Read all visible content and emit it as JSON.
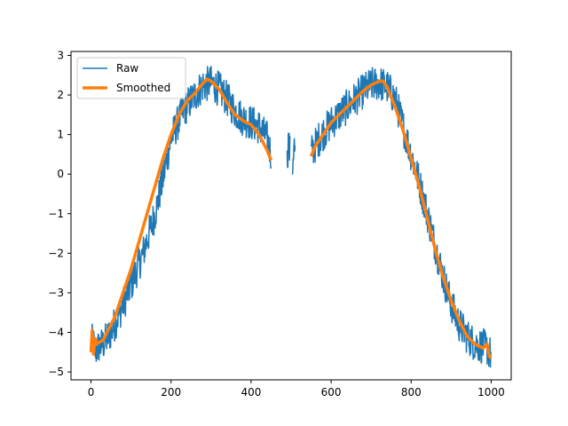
{
  "chart_data": {
    "type": "line",
    "title": "",
    "xlabel": "",
    "ylabel": "",
    "xlim": [
      -50,
      1050
    ],
    "ylim": [
      -5.2,
      3.1
    ],
    "xticks": [
      0,
      200,
      400,
      600,
      800,
      1000
    ],
    "yticks": [
      -5,
      -4,
      -3,
      -2,
      -1,
      0,
      1,
      2,
      3
    ],
    "grid": false,
    "legend_position": "upper-left",
    "gaps": [
      [
        450,
        490
      ],
      [
        510,
        550
      ]
    ],
    "series": [
      {
        "name": "Raw",
        "color": "#1f77b4",
        "style": "noisy",
        "noise_amplitude": 0.45,
        "segments": [
          {
            "x": [
              0,
              5,
              10,
              20,
              30,
              50,
              80,
              100,
              130,
              160,
              180,
              200,
              230,
              260,
              280,
              300,
              320,
              340,
              360,
              380,
              400,
              420,
              440,
              450
            ],
            "y": [
              -4.3,
              -4.2,
              -4.5,
              -4.35,
              -4.3,
              -4.0,
              -3.3,
              -2.8,
              -2.0,
              -1.0,
              -0.1,
              0.9,
              1.6,
              2.0,
              2.25,
              2.3,
              2.15,
              1.9,
              1.6,
              1.4,
              1.3,
              1.2,
              0.9,
              0.5
            ]
          },
          {
            "x": [
              490,
              493,
              497
            ],
            "y": [
              0.3,
              0.8,
              0.55
            ]
          },
          {
            "x": [
              503,
              507,
              510
            ],
            "y": [
              0.1,
              0.8,
              0.5
            ]
          },
          {
            "x": [
              550,
              570,
              600,
              620,
              640,
              660,
              680,
              700,
              720,
              740,
              760,
              780,
              800,
              820,
              840,
              860,
              880,
              900,
              920,
              940,
              960,
              980,
              990,
              1000
            ],
            "y": [
              0.55,
              0.9,
              1.3,
              1.5,
              1.7,
              1.9,
              2.1,
              2.25,
              2.3,
              2.2,
              1.9,
              1.2,
              0.5,
              -0.2,
              -1.0,
              -1.8,
              -2.6,
              -3.3,
              -3.8,
              -4.1,
              -4.3,
              -4.35,
              -4.4,
              -4.6
            ]
          }
        ]
      },
      {
        "name": "Smoothed",
        "color": "#ff7f0e",
        "style": "smooth",
        "segments": [
          {
            "x": [
              0,
              3,
              6,
              10,
              14,
              20,
              30,
              40,
              60,
              80,
              100,
              120,
              140,
              160,
              180,
              200,
              220,
              240,
              260,
              280,
              290,
              300,
              320,
              340,
              360,
              380,
              400,
              420,
              440,
              450
            ],
            "y": [
              -4.5,
              -3.95,
              -4.55,
              -4.15,
              -4.3,
              -4.25,
              -4.2,
              -4.0,
              -3.6,
              -3.0,
              -2.4,
              -1.7,
              -1.0,
              -0.3,
              0.4,
              1.0,
              1.5,
              1.85,
              2.05,
              2.3,
              2.4,
              2.35,
              2.15,
              1.8,
              1.5,
              1.35,
              1.25,
              1.0,
              0.6,
              0.35
            ]
          },
          {
            "x": [
              550,
              560,
              580,
              600,
              620,
              640,
              660,
              680,
              700,
              720,
              730,
              740,
              760,
              780,
              800,
              820,
              840,
              860,
              880,
              900,
              920,
              940,
              960,
              980,
              990,
              995,
              1000
            ],
            "y": [
              0.45,
              0.7,
              1.0,
              1.3,
              1.5,
              1.7,
              1.9,
              2.1,
              2.25,
              2.35,
              2.35,
              2.2,
              1.7,
              1.1,
              0.4,
              -0.3,
              -1.1,
              -1.9,
              -2.6,
              -3.2,
              -3.7,
              -4.1,
              -4.3,
              -4.4,
              -4.3,
              -4.6,
              -4.65
            ]
          }
        ]
      }
    ]
  }
}
